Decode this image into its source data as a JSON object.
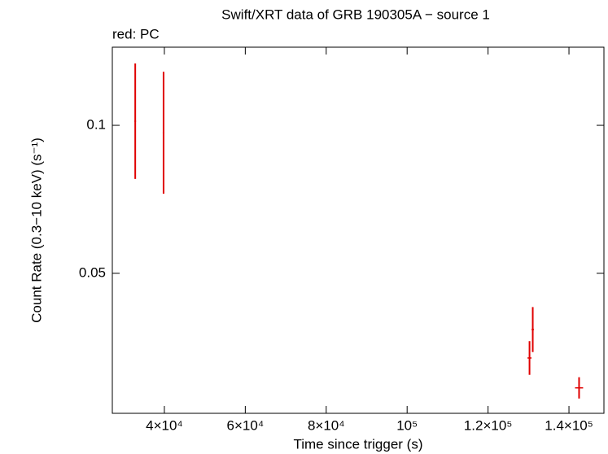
{
  "chart_data": {
    "type": "errorbar",
    "title": "Swift/XRT data of GRB 190305A − source 1",
    "subtitle": "red: PC",
    "x_label": "Time since trigger (s)",
    "y_label": "Count Rate (0.3−10 keV) (s⁻¹)",
    "xlim": [
      27136,
      148643
    ],
    "ylim": [
      0.0027,
      0.1264
    ],
    "xticks": [
      {
        "value": 40000,
        "label": "4×10⁴"
      },
      {
        "value": 60000,
        "label": "6×10⁴"
      },
      {
        "value": 80000,
        "label": "8×10⁴"
      },
      {
        "value": 100000,
        "label": "10⁵"
      },
      {
        "value": 120000,
        "label": "1.2×10⁵"
      },
      {
        "value": 140000,
        "label": "1.4×10⁵"
      }
    ],
    "yticks": [
      0.05,
      0.1
    ],
    "series": [
      {
        "color": "#e00000",
        "x": [
          32800,
          39800,
          130250,
          131050,
          142500
        ],
        "x_errors": [
          200,
          200,
          500,
          300,
          1000
        ],
        "values": [
          0.1014,
          0.0975,
          0.0214,
          0.031,
          0.0113
        ],
        "errors": [
          0.0195,
          0.0206,
          0.0057,
          0.0076,
          0.0036
        ]
      }
    ]
  }
}
